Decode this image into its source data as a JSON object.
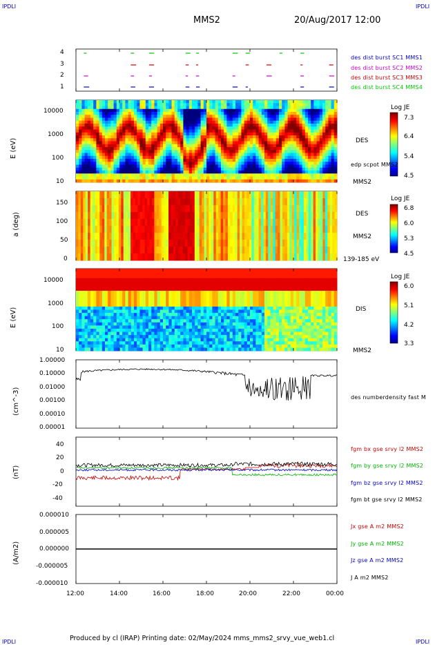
{
  "header": {
    "corner_left": "IPDLI",
    "corner_right": "IPDLI",
    "spacecraft": "MMS2",
    "datetime": "20/Aug/2017 12:00"
  },
  "footer": {
    "corner_left": "IPDLI",
    "corner_right": "IPDLI",
    "text": "Produced by cl (IRAP)   Printing date: 02/May/2024   mms_mms2_srvy_vue_web1.cl"
  },
  "x_axis": {
    "ticks": [
      "12:00",
      "14:00",
      "16:00",
      "18:00",
      "20:00",
      "22:00",
      "00:00"
    ]
  },
  "panels": {
    "burst": {
      "yticks": [
        "4",
        "3",
        "2",
        "1"
      ],
      "labels": [
        {
          "text": "des dist burst SC1 MMS1",
          "color": "#0000c8"
        },
        {
          "text": "des dist burst SC2 MMS2",
          "color": "#c800c8"
        },
        {
          "text": "des dist burst SC3 MMS3",
          "color": "#c80000"
        },
        {
          "text": "des dist burst SC4 MMS4",
          "color": "#00c800"
        }
      ]
    },
    "des_energy": {
      "ylabel": "E (eV)",
      "yticks": [
        "10000",
        "1000",
        "100",
        "10"
      ],
      "right_label": "DES",
      "overlay_label": "edp scpot MMS2",
      "bottom_label": "MMS2",
      "colorbar": {
        "title": "Log JE",
        "ticks": [
          "7.3",
          "6.4",
          "5.4",
          "4.5"
        ]
      }
    },
    "des_pitch": {
      "ylabel": "a (deg)",
      "yticks": [
        "150",
        "100",
        "50",
        "0"
      ],
      "right_label": "DES",
      "bottom_label": "MMS2",
      "extra_label": "139-185 eV",
      "colorbar": {
        "title": "Log JE",
        "ticks": [
          "6.8",
          "6.0",
          "5.3",
          "4.5"
        ]
      }
    },
    "dis_energy": {
      "ylabel": "E (eV)",
      "yticks": [
        "10000",
        "1000",
        "100",
        "10"
      ],
      "right_label": "DIS",
      "bottom_label": "MMS2",
      "colorbar": {
        "title": "Log JE",
        "ticks": [
          "6.0",
          "5.1",
          "4.2",
          "3.3"
        ]
      }
    },
    "density": {
      "ylabel": "(cm^-3)",
      "yticks": [
        "1.00000",
        "0.10000",
        "0.01000",
        "0.00100",
        "0.00010",
        "0.00001"
      ],
      "right_label": "des numberdensity fast M"
    },
    "bfield": {
      "ylabel": "(nT)",
      "yticks": [
        "40",
        "20",
        "0",
        "-20",
        "-40"
      ],
      "labels": [
        {
          "text": "fgm bx gse srvy l2 MMS2",
          "color": "#c80000"
        },
        {
          "text": "fgm by gse srvy l2 MMS2",
          "color": "#00b400"
        },
        {
          "text": "fgm bz gse srvy l2 MMS2",
          "color": "#0000c8"
        },
        {
          "text": "fgm bt gse srvy l2 MMS2",
          "color": "#000000"
        }
      ]
    },
    "current": {
      "ylabel": "(A/m2)",
      "yticks": [
        "0.000010",
        "0.000005",
        "0.000000",
        "-0.000005",
        "-0.000010"
      ],
      "labels": [
        {
          "text": "Jx gse A m2 MMS2",
          "color": "#c80000"
        },
        {
          "text": "Jy gse A m2 MMS2",
          "color": "#00b400"
        },
        {
          "text": "Jz gse A m2 MMS2",
          "color": "#0000c8"
        },
        {
          "text": "J A m2 MMS2",
          "color": "#000000"
        }
      ]
    }
  },
  "chart_data": [
    {
      "type": "scatter",
      "name_panel": "burst",
      "yticks": [
        1,
        2,
        3,
        4
      ],
      "ylim": [
        0.5,
        4.5
      ]
    },
    {
      "type": "heatmap",
      "name_panel": "des_energy",
      "yscale": "log",
      "ylim": [
        10,
        30000
      ],
      "zlim": [
        4.5,
        7.3
      ]
    },
    {
      "type": "heatmap",
      "name_panel": "des_pitch",
      "ylim": [
        0,
        180
      ],
      "zlim": [
        4.5,
        6.8
      ]
    },
    {
      "type": "heatmap",
      "name_panel": "dis_energy",
      "yscale": "log",
      "ylim": [
        10,
        30000
      ],
      "zlim": [
        3.3,
        6.0
      ]
    },
    {
      "type": "line",
      "name_panel": "density",
      "yscale": "log",
      "ylim": [
        1e-05,
        1.0
      ]
    },
    {
      "type": "line",
      "name_panel": "bfield",
      "ylim": [
        -50,
        50
      ]
    },
    {
      "type": "line",
      "name_panel": "current",
      "ylim": [
        -1e-05,
        1e-05
      ]
    }
  ]
}
